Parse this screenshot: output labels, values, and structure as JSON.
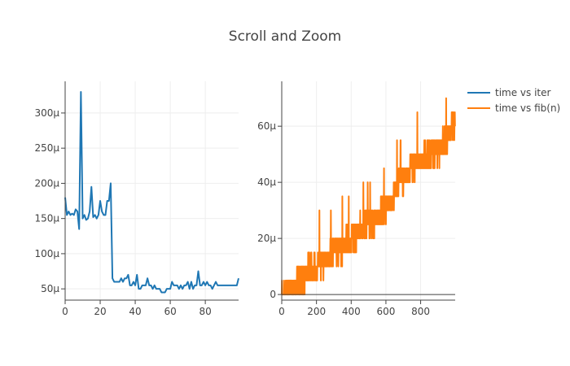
{
  "chart_data": [
    {
      "type": "line",
      "title": "Scroll and Zoom",
      "xlabel": "",
      "ylabel": "",
      "xlim": [
        0,
        99
      ],
      "ylim": [
        34,
        345
      ],
      "x_ticks": [
        0,
        20,
        40,
        60,
        80
      ],
      "x_tick_labels": [
        "0",
        "20",
        "40",
        "60",
        "80"
      ],
      "y_ticks": [
        50,
        100,
        150,
        200,
        250,
        300
      ],
      "y_tick_labels": [
        "50µ",
        "100µ",
        "150µ",
        "200µ",
        "250µ",
        "300µ"
      ],
      "grid": true,
      "series": [
        {
          "name": "time vs iter",
          "color": "#1f77b4",
          "x": [
            0,
            1,
            2,
            3,
            4,
            5,
            6,
            7,
            8,
            9,
            10,
            11,
            12,
            13,
            14,
            15,
            16,
            17,
            18,
            19,
            20,
            21,
            22,
            23,
            24,
            25,
            26,
            27,
            28,
            29,
            30,
            31,
            32,
            33,
            34,
            35,
            36,
            37,
            38,
            39,
            40,
            41,
            42,
            43,
            44,
            45,
            46,
            47,
            48,
            49,
            50,
            51,
            52,
            53,
            54,
            55,
            56,
            57,
            58,
            59,
            60,
            61,
            62,
            63,
            64,
            65,
            66,
            67,
            68,
            69,
            70,
            71,
            72,
            73,
            74,
            75,
            76,
            77,
            78,
            79,
            80,
            81,
            82,
            83,
            84,
            85,
            86,
            87,
            88,
            89,
            90,
            91,
            92,
            93,
            94,
            95,
            96,
            97,
            98,
            99
          ],
          "y": [
            180,
            155,
            160,
            155,
            157,
            155,
            163,
            160,
            135,
            330,
            150,
            155,
            148,
            150,
            160,
            195,
            152,
            155,
            150,
            155,
            175,
            160,
            155,
            155,
            175,
            175,
            200,
            65,
            60,
            60,
            60,
            60,
            65,
            60,
            65,
            65,
            70,
            55,
            55,
            60,
            55,
            70,
            50,
            50,
            55,
            55,
            55,
            65,
            55,
            55,
            50,
            55,
            50,
            50,
            50,
            45,
            45,
            45,
            50,
            50,
            50,
            60,
            55,
            55,
            55,
            50,
            55,
            50,
            55,
            55,
            60,
            50,
            60,
            50,
            55,
            55,
            75,
            55,
            55,
            60,
            55,
            60,
            55,
            55,
            50,
            55,
            60,
            55,
            55,
            55,
            55,
            55,
            55,
            55,
            55,
            55,
            55,
            55,
            55,
            65
          ]
        }
      ]
    },
    {
      "type": "line",
      "xlabel": "",
      "ylabel": "",
      "xlim": [
        0,
        999
      ],
      "ylim": [
        -2,
        76
      ],
      "x_ticks": [
        0,
        200,
        400,
        600,
        800
      ],
      "x_tick_labels": [
        "0",
        "200",
        "400",
        "600",
        "800"
      ],
      "y_ticks": [
        0,
        20,
        40,
        60
      ],
      "y_tick_labels": [
        "0",
        "20µ",
        "40µ",
        "60µ"
      ],
      "grid": true,
      "series": [
        {
          "name": "time vs fib(n)",
          "color": "#ff7f0e",
          "trend": [
            [
              0,
              2
            ],
            [
              100,
              4
            ],
            [
              150,
              8
            ],
            [
              250,
              12
            ],
            [
              350,
              17
            ],
            [
              450,
              23
            ],
            [
              550,
              27
            ],
            [
              620,
              33
            ],
            [
              680,
              40
            ],
            [
              750,
              45
            ],
            [
              850,
              50
            ],
            [
              930,
              53
            ],
            [
              999,
              62
            ]
          ],
          "noise_amplitude": 5,
          "quantum": 5
        }
      ]
    }
  ],
  "legend": {
    "position": "top-right",
    "items": [
      {
        "label": "time vs iter",
        "color": "#1f77b4"
      },
      {
        "label": "time vs fib(n)",
        "color": "#ff7f0e"
      }
    ]
  }
}
